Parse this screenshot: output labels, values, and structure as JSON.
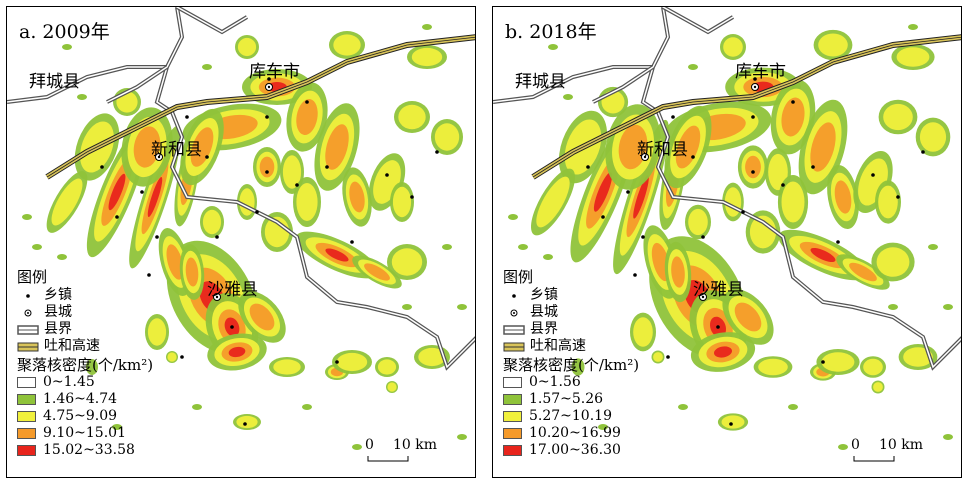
{
  "colors": {
    "class_0": "#ffffff",
    "class_1": "#8fc33a",
    "class_2": "#f0f03c",
    "class_3": "#f59a2a",
    "class_4": "#e8241c",
    "county_boundary": "#8a8a8a",
    "expressway": "#d9c45a"
  },
  "icons": {
    "township": "dot-icon",
    "county_seat": "circled-dot-icon",
    "county_boundary": "double-line-icon",
    "expressway": "striped-road-icon"
  },
  "place_names": {
    "baicheng": "拜城县",
    "kuche": "库车市",
    "xinhe": "新和县",
    "shaya": "沙雅县"
  },
  "legend": {
    "title": "图例",
    "township": "乡镇",
    "county_seat": "县城",
    "county_boundary": "县界",
    "expressway": "吐和高速",
    "density_title": "聚落核密度(个/km²)"
  },
  "scalebar": {
    "zero": "0",
    "label": "10 km"
  },
  "panels": [
    {
      "title": "a. 2009年",
      "classes": [
        "0~1.45",
        "1.46~4.74",
        "4.75~9.09",
        "9.10~15.01",
        "15.02~33.58"
      ]
    },
    {
      "title": "b. 2018年",
      "classes": [
        "0~1.56",
        "1.57~5.26",
        "5.27~10.19",
        "10.20~16.99",
        "17.00~36.30"
      ]
    }
  ]
}
